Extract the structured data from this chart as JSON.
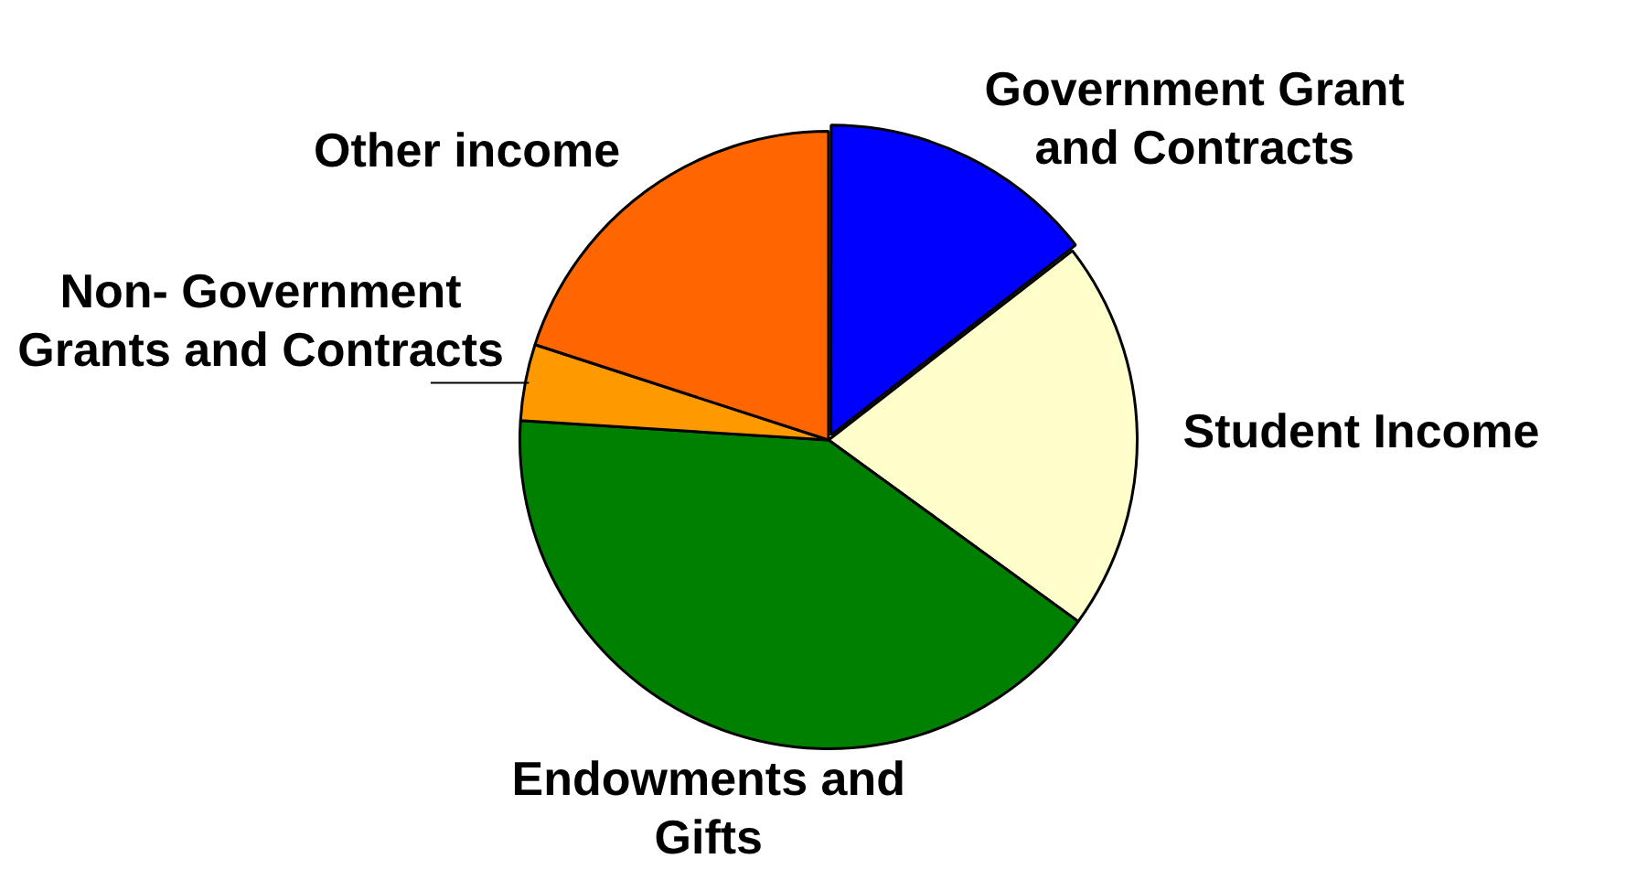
{
  "chart_data": {
    "type": "pie",
    "categories": [
      "Government Grant and Contracts",
      "Student Income",
      "Endowments and Gifts",
      "Non- Government Grants and Contracts",
      "Other income"
    ],
    "values": [
      14.5,
      20.5,
      41,
      4,
      20
    ],
    "colors": [
      "#0000ff",
      "#ffffcc",
      "#008000",
      "#ff9900",
      "#ff6600"
    ],
    "legend": false
  }
}
